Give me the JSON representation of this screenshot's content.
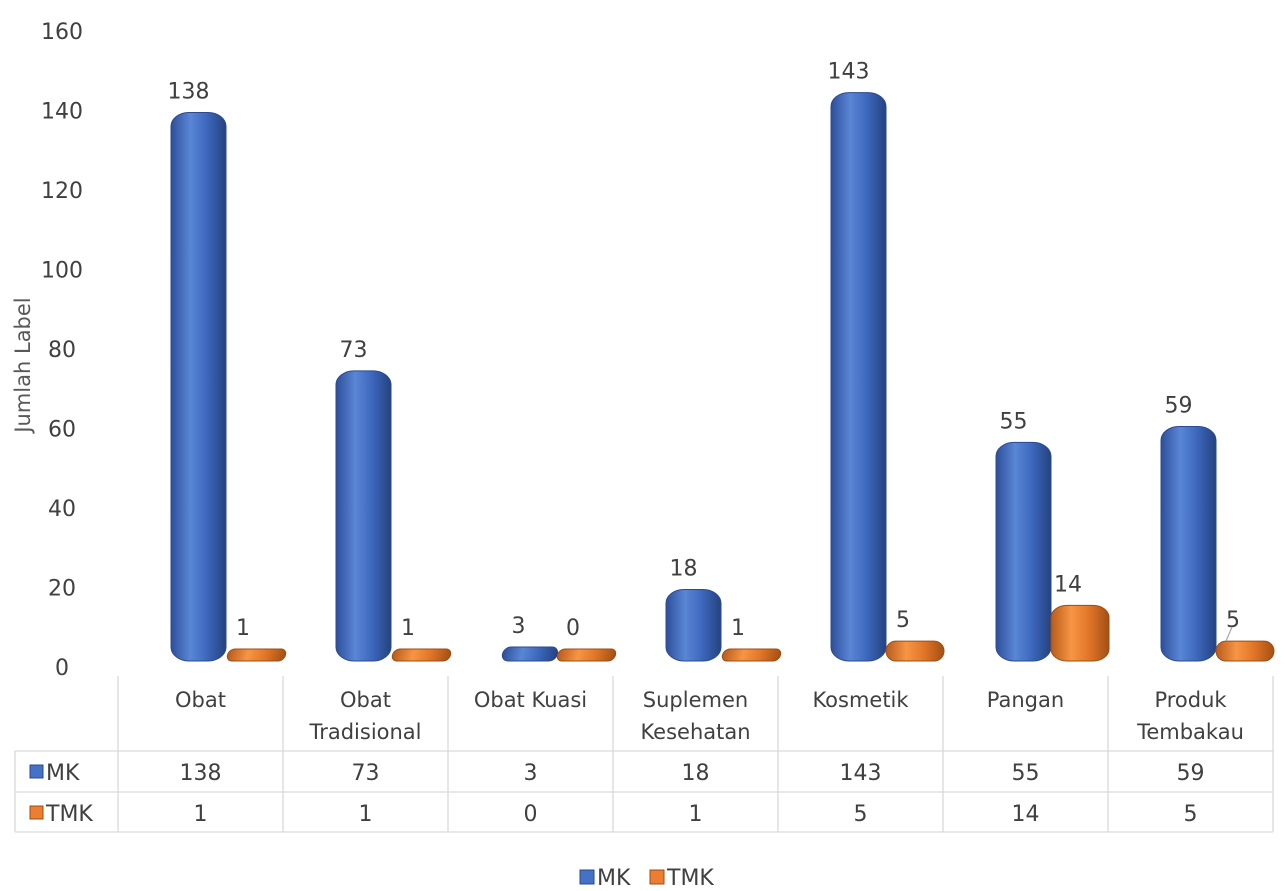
{
  "colors": {
    "MK": "#4472c4",
    "TMK": "#ed7d31",
    "grid": "#d9d9d9"
  },
  "chart_data": {
    "type": "bar",
    "title": "",
    "xlabel": "",
    "ylabel": "Jumlah Label",
    "ylim": [
      0,
      160
    ],
    "yticks": [
      0,
      20,
      40,
      60,
      80,
      100,
      120,
      140,
      160
    ],
    "categories": [
      [
        "Obat"
      ],
      [
        "Obat",
        "Tradisional"
      ],
      [
        "Obat Kuasi"
      ],
      [
        "Suplemen",
        "Kesehatan"
      ],
      [
        "Kosmetik"
      ],
      [
        "Pangan"
      ],
      [
        "Produk",
        "Tembakau"
      ]
    ],
    "series": [
      {
        "name": "MK",
        "values": [
          138,
          73,
          3,
          18,
          143,
          55,
          59
        ]
      },
      {
        "name": "TMK",
        "values": [
          1,
          1,
          0,
          1,
          5,
          14,
          5
        ]
      }
    ],
    "data_table": true,
    "legend_position": "bottom",
    "grid": false
  }
}
